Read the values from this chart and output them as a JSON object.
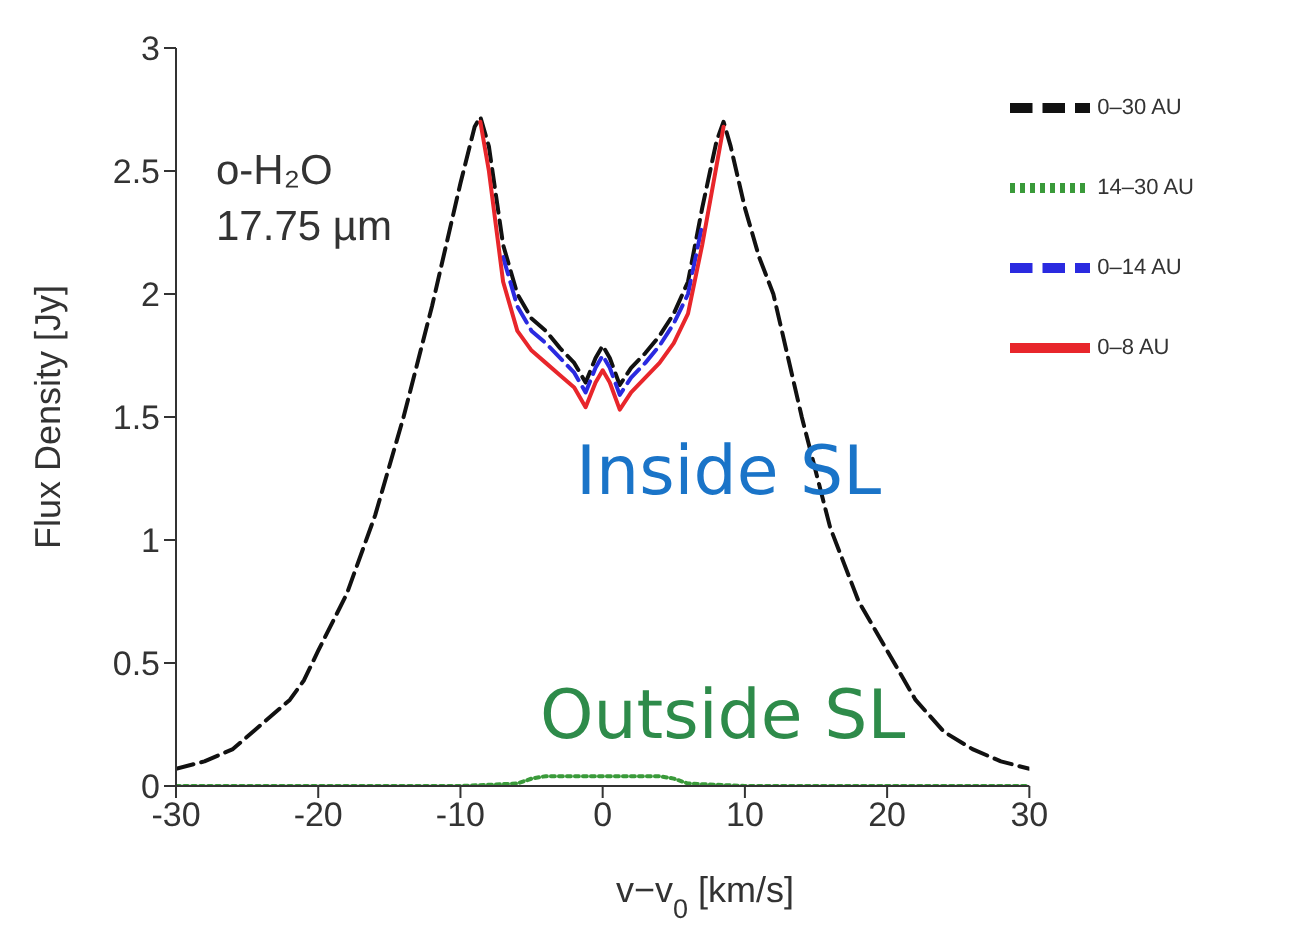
{
  "chart_data": {
    "type": "line",
    "xlabel": "v−v$_{0}$ [km/s]",
    "ylabel": "Flux Density [Jy]",
    "xlim": [
      -30,
      30
    ],
    "xticks": [
      -30,
      -20,
      -10,
      0,
      10,
      20,
      30
    ],
    "ylim": [
      0,
      3
    ],
    "yticks": [
      0,
      0.5,
      1,
      1.5,
      2,
      2.5,
      3
    ],
    "grid": false,
    "legend": "top right",
    "marker": "none",
    "annotations": [
      "o-H₂O",
      "17.75 µm",
      "Inside SL",
      "Outside SL"
    ],
    "series": [
      {
        "name": "0–8 AU",
        "color": "#e8262b",
        "line_style": "solid",
        "x": [
          -8.6,
          -8,
          -7,
          -6,
          -5,
          -4,
          -3,
          -2,
          -1.2,
          -0.5,
          0,
          0.5,
          1.2,
          2,
          3,
          4,
          5,
          6,
          7,
          8,
          8.5
        ],
        "values": [
          2.7,
          2.5,
          2.05,
          1.85,
          1.77,
          1.72,
          1.67,
          1.62,
          1.54,
          1.64,
          1.69,
          1.64,
          1.53,
          1.6,
          1.66,
          1.72,
          1.8,
          1.92,
          2.2,
          2.52,
          2.68
        ]
      },
      {
        "name": "0–14 AU",
        "color": "#2a2ae0",
        "line_style": "dashed",
        "x": [
          -7,
          -6,
          -5,
          -4,
          -3,
          -2,
          -1.2,
          -0.5,
          0,
          0.5,
          1.2,
          2,
          3,
          4,
          5,
          6,
          7
        ],
        "values": [
          2.15,
          1.95,
          1.85,
          1.8,
          1.74,
          1.68,
          1.6,
          1.7,
          1.75,
          1.7,
          1.59,
          1.66,
          1.72,
          1.79,
          1.88,
          2.0,
          2.28
        ]
      },
      {
        "name": "14–30 AU",
        "color": "#3a9a3a",
        "line_style": "dotted",
        "x": [
          -30,
          -10,
          -6,
          -5,
          -4,
          -2,
          0,
          2,
          4,
          5,
          6,
          10,
          30
        ],
        "values": [
          0,
          0,
          0.01,
          0.03,
          0.04,
          0.04,
          0.04,
          0.04,
          0.04,
          0.03,
          0.01,
          0,
          0
        ]
      },
      {
        "name": "0–30 AU",
        "color": "#111111",
        "line_style": "dashed",
        "x": [
          -30,
          -28,
          -26,
          -24,
          -22,
          -21,
          -20,
          -18,
          -16,
          -14,
          -12,
          -11,
          -10,
          -9,
          -8.6,
          -8,
          -7,
          -6,
          -5,
          -4,
          -3,
          -2,
          -1.2,
          -0.5,
          0,
          0.5,
          1.2,
          2,
          3,
          4,
          5,
          6,
          7,
          8,
          8.5,
          9,
          10,
          11,
          12,
          14,
          16,
          18,
          20,
          21,
          22,
          24,
          26,
          28,
          30
        ],
        "values": [
          0.07,
          0.1,
          0.15,
          0.25,
          0.35,
          0.43,
          0.55,
          0.78,
          1.1,
          1.5,
          1.95,
          2.2,
          2.45,
          2.68,
          2.72,
          2.6,
          2.2,
          2.0,
          1.9,
          1.85,
          1.78,
          1.72,
          1.64,
          1.74,
          1.79,
          1.74,
          1.63,
          1.7,
          1.76,
          1.83,
          1.92,
          2.05,
          2.35,
          2.62,
          2.7,
          2.6,
          2.35,
          2.15,
          2.0,
          1.5,
          1.05,
          0.75,
          0.55,
          0.45,
          0.35,
          0.22,
          0.15,
          0.1,
          0.07
        ]
      }
    ]
  }
}
